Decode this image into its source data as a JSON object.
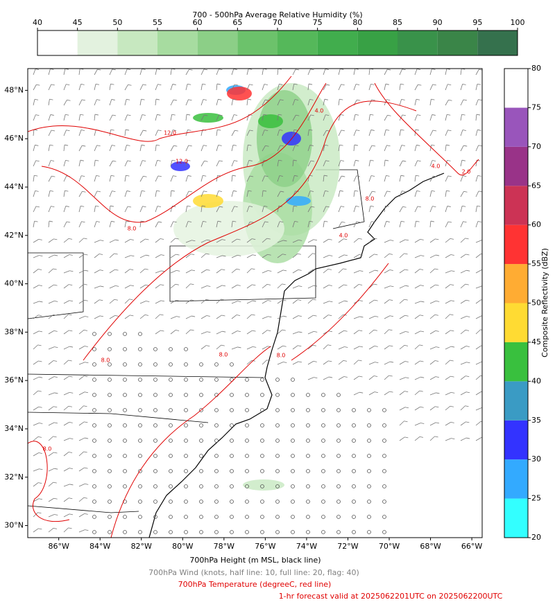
{
  "rh_colorbar": {
    "title": "700 - 500hPa Average Relative Humidity (%)",
    "lim": [
      40,
      100
    ],
    "ticks": [
      40,
      45,
      50,
      55,
      60,
      65,
      70,
      75,
      80,
      85,
      90,
      95,
      100
    ],
    "colors": [
      "#ffffff",
      "#e3f2df",
      "#c7e8c0",
      "#a7dca0",
      "#8ccf87",
      "#6cc26b",
      "#55b85a",
      "#41ad4d",
      "#38a145",
      "#39924a",
      "#3a8548",
      "#35714d"
    ]
  },
  "reflectivity_colorbar": {
    "label": "Composite Reflectivity (dBZ)",
    "lim": [
      20,
      80
    ],
    "ticks": [
      20,
      25,
      30,
      35,
      40,
      45,
      50,
      55,
      60,
      65,
      70,
      75,
      80
    ],
    "colors": [
      "#33ffff",
      "#33aaff",
      "#3333ff",
      "#3a9bc4",
      "#39c03e",
      "#ffdb33",
      "#ffac33",
      "#ff3333",
      "#cc3355",
      "#993388",
      "#9955bb",
      "#ffffff"
    ]
  },
  "map": {
    "lat_lim": [
      29.5,
      48.9
    ],
    "lon_lim": [
      -87.5,
      -65.5
    ],
    "lat_ticks": [
      {
        "value": 30,
        "label": "30°N"
      },
      {
        "value": 32,
        "label": "32°N"
      },
      {
        "value": 34,
        "label": "34°N"
      },
      {
        "value": 36,
        "label": "36°N"
      },
      {
        "value": 38,
        "label": "38°N"
      },
      {
        "value": 40,
        "label": "40°N"
      },
      {
        "value": 42,
        "label": "42°N"
      },
      {
        "value": 44,
        "label": "44°N"
      },
      {
        "value": 46,
        "label": "46°N"
      },
      {
        "value": 48,
        "label": "48°N"
      }
    ],
    "lon_ticks": [
      {
        "value": -86,
        "label": "86°W"
      },
      {
        "value": -84,
        "label": "84°W"
      },
      {
        "value": -82,
        "label": "82°W"
      },
      {
        "value": -80,
        "label": "80°W"
      },
      {
        "value": -78,
        "label": "78°W"
      },
      {
        "value": -76,
        "label": "76°W"
      },
      {
        "value": -74,
        "label": "74°W"
      },
      {
        "value": -72,
        "label": "72°W"
      },
      {
        "value": -70,
        "label": "70°W"
      },
      {
        "value": -68,
        "label": "68°W"
      },
      {
        "value": -66,
        "label": "66°W"
      }
    ],
    "contour_labels": [
      "12.0",
      "12.0",
      "4.0",
      "8.0",
      "4.0",
      "8.0",
      "8.0",
      "8.0",
      "8.0",
      "8.0",
      "4.0",
      "2.0"
    ]
  },
  "captions": [
    "700hPa Height (m MSL, black line)",
    "700hPa Wind (knots, half line: 10, full line: 20, flag: 40)",
    "700hPa Temperature (degreeC, red line)",
    "1-hr forecast valid at 2025062201UTC on 2025062200UTC"
  ]
}
